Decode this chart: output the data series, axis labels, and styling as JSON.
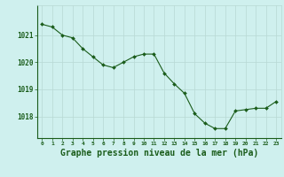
{
  "x": [
    0,
    1,
    2,
    3,
    4,
    5,
    6,
    7,
    8,
    9,
    10,
    11,
    12,
    13,
    14,
    15,
    16,
    17,
    18,
    19,
    20,
    21,
    22,
    23
  ],
  "y": [
    1021.4,
    1021.3,
    1021.0,
    1020.9,
    1020.5,
    1020.2,
    1019.9,
    1019.8,
    1020.0,
    1020.2,
    1020.3,
    1020.3,
    1019.6,
    1019.2,
    1018.85,
    1018.1,
    1017.75,
    1017.55,
    1017.55,
    1018.2,
    1018.25,
    1018.3,
    1018.3,
    1018.55
  ],
  "line_color": "#1a5c1a",
  "marker": "D",
  "marker_size": 2.0,
  "bg_color": "#cff0ee",
  "grid_color": "#b8d8d4",
  "tick_label_color": "#1a5c1a",
  "xlabel": "Graphe pression niveau de la mer (hPa)",
  "xlabel_color": "#1a5c1a",
  "xlabel_fontsize": 7,
  "ytick_labels": [
    "1018",
    "1019",
    "1020",
    "1021"
  ],
  "ylim": [
    1017.2,
    1022.1
  ],
  "xlim": [
    -0.5,
    23.5
  ],
  "xtick_labels": [
    "0",
    "1",
    "2",
    "3",
    "4",
    "5",
    "6",
    "7",
    "8",
    "9",
    "10",
    "11",
    "12",
    "13",
    "14",
    "15",
    "16",
    "17",
    "18",
    "19",
    "20",
    "21",
    "22",
    "23"
  ]
}
